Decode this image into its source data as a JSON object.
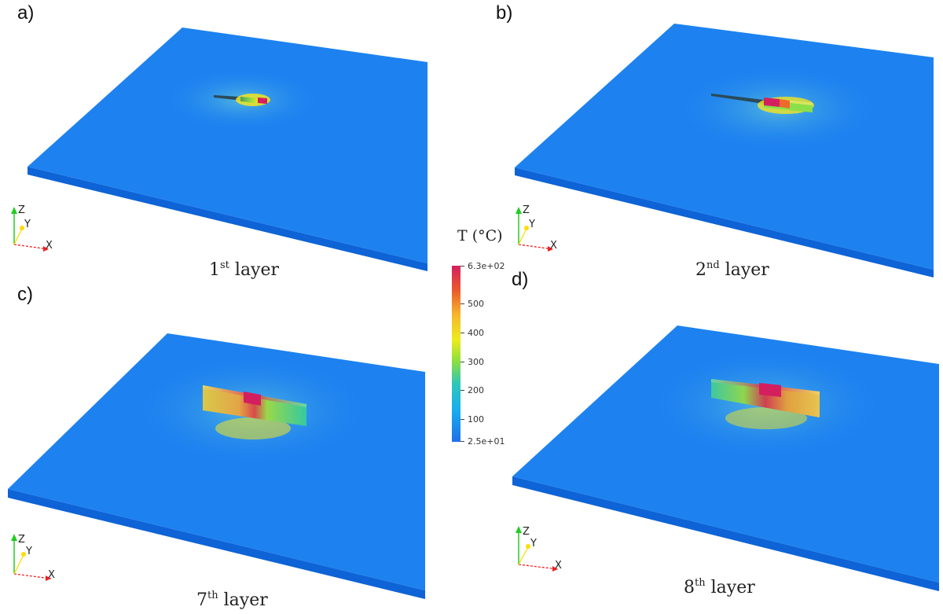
{
  "panels": [
    {
      "label": "a)",
      "caption_num": "1",
      "caption_sup": "st",
      "caption_word": "layer"
    },
    {
      "label": "b)",
      "caption_num": "2",
      "caption_sup": "nd",
      "caption_word": "layer"
    },
    {
      "label": "c)",
      "caption_num": "7",
      "caption_sup": "th",
      "caption_word": "layer"
    },
    {
      "label": "d)",
      "caption_num": "8",
      "caption_sup": "th",
      "caption_word": "layer"
    }
  ],
  "axes_triad": {
    "z": "Z",
    "y": "Y",
    "x": "X"
  },
  "colorbar": {
    "title": "T (°C)",
    "max_label": "6.3e+02",
    "min_label": "2.5e+01",
    "tick_labels": [
      "500",
      "400",
      "300",
      "200",
      "100"
    ],
    "min_value": 25,
    "max_value": 630,
    "tick_values": [
      500,
      400,
      300,
      200,
      100
    ]
  },
  "colors": {
    "plate_top": "#1d82f0",
    "plate_side": "#0e63d6",
    "hot": "#d41f5f",
    "warm": "#ecec1c"
  }
}
